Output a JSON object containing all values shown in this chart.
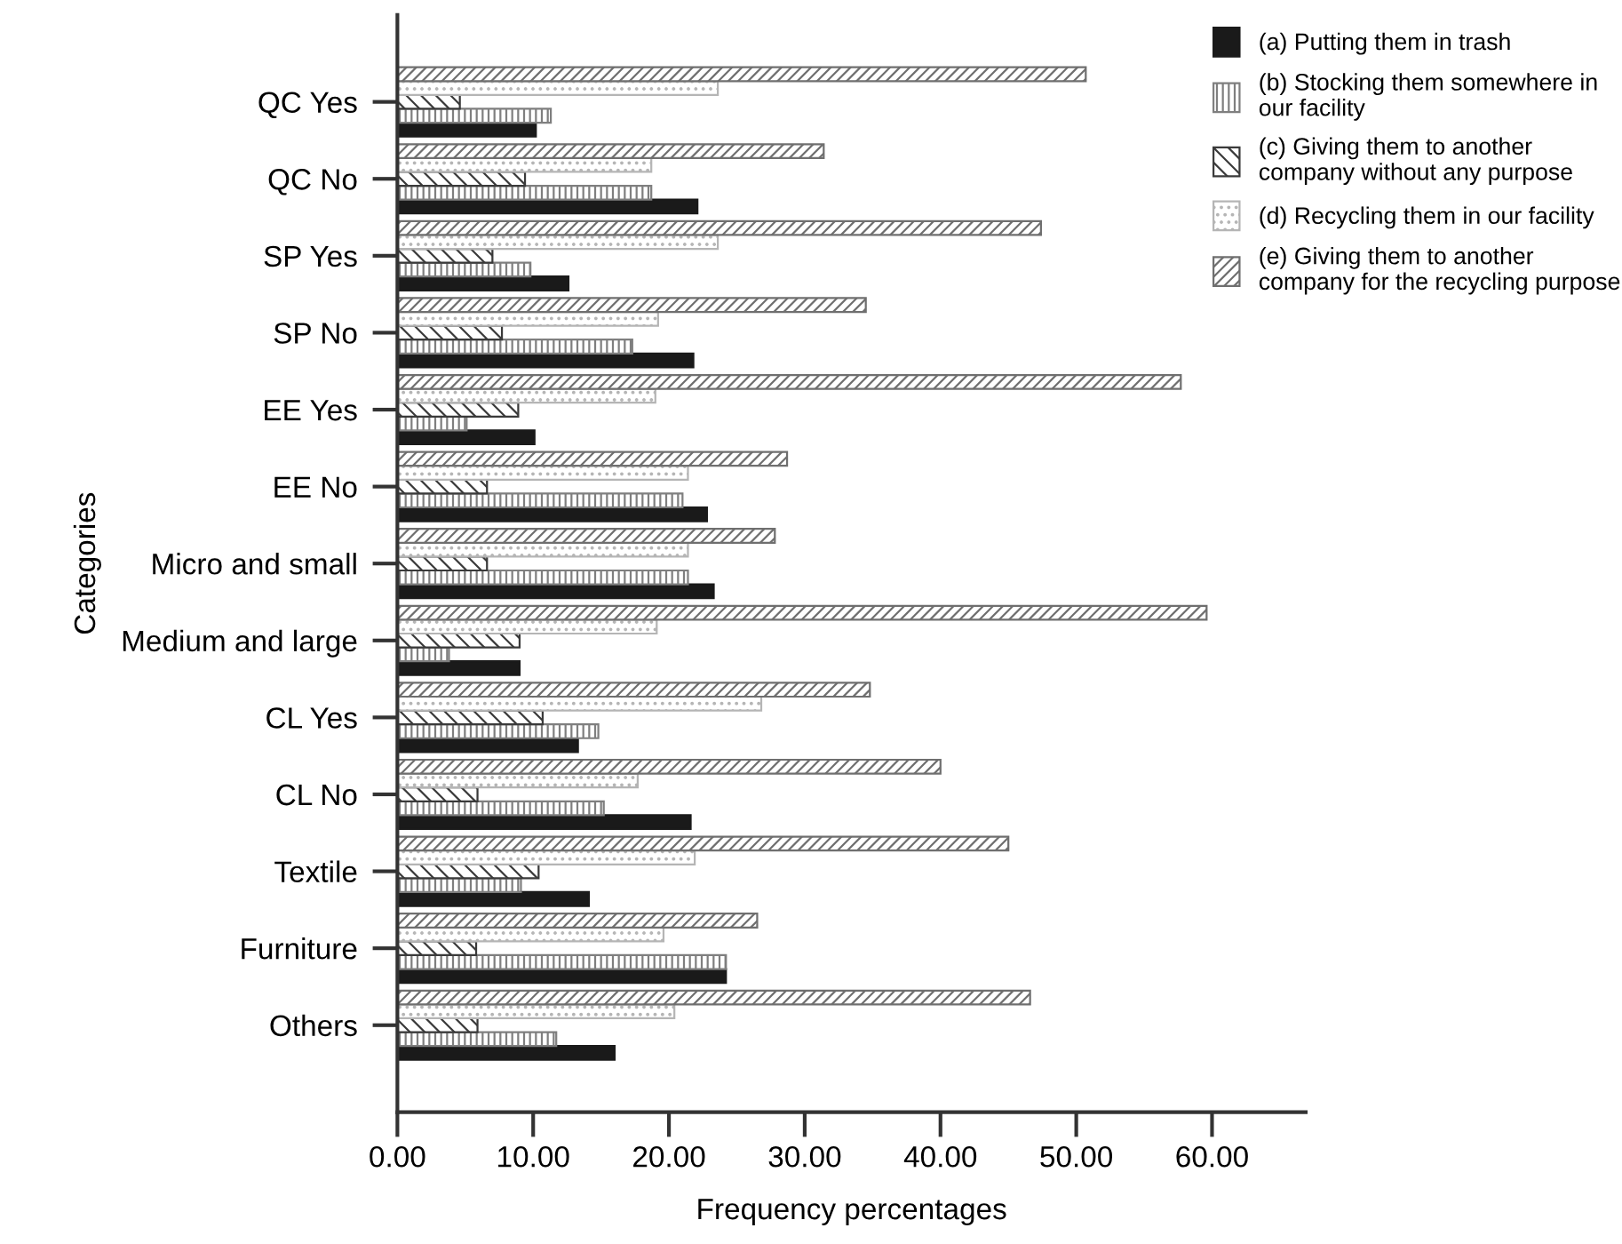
{
  "chart_data": {
    "type": "bar",
    "orientation": "horizontal",
    "xlabel": "Frequency percentages",
    "ylabel": "Categories",
    "categories": [
      "QC Yes",
      "QC No",
      "SP Yes",
      "SP No",
      "EE Yes",
      "EE No",
      "Micro and small",
      "Medium and large",
      "CL Yes",
      "CL No",
      "Textile",
      "Furniture",
      "Others"
    ],
    "series": [
      {
        "name": "(a) Putting them in trash",
        "color": "#1a1a1a",
        "values": [
          10.2,
          22.1,
          12.6,
          21.8,
          10.1,
          22.8,
          23.3,
          9.0,
          13.3,
          21.6,
          14.1,
          24.2,
          16.0
        ]
      },
      {
        "name": "(b) Stocking them somewhere in\nour facility",
        "color": "#7f7f7f",
        "values": [
          11.3,
          18.7,
          9.8,
          17.3,
          5.1,
          21.0,
          21.4,
          3.8,
          14.8,
          15.2,
          9.1,
          24.2,
          11.7
        ]
      },
      {
        "name": "(c) Giving them to another\ncompany without any purpose",
        "color": "#3a3a3a",
        "values": [
          4.6,
          9.4,
          7.0,
          7.7,
          8.9,
          6.6,
          6.6,
          9.0,
          10.7,
          5.9,
          10.4,
          5.8,
          5.9
        ]
      },
      {
        "name": "(d) Recycling them in our facility",
        "color": "#b5b5b5",
        "values": [
          23.6,
          18.7,
          23.6,
          19.2,
          19.0,
          21.4,
          21.4,
          19.1,
          26.8,
          17.7,
          21.9,
          19.6,
          20.4
        ]
      },
      {
        "name": "(e) Giving them to another\ncompany for the recycling purpose",
        "color": "#6f6f6f",
        "values": [
          50.7,
          31.4,
          47.4,
          34.5,
          57.7,
          28.7,
          27.8,
          59.6,
          34.8,
          40.0,
          45.0,
          26.5,
          46.6
        ]
      }
    ],
    "xlim": [
      0,
      66.9
    ],
    "xticks": [
      {
        "value": 0,
        "label": "0.00"
      },
      {
        "value": 10,
        "label": "10.00"
      },
      {
        "value": 20,
        "label": "20.00"
      },
      {
        "value": 30,
        "label": "30.00"
      },
      {
        "value": 40,
        "label": "40.00"
      },
      {
        "value": 50,
        "label": "50.00"
      },
      {
        "value": 60,
        "label": "60.00"
      }
    ],
    "grid": false,
    "legend": "top right"
  }
}
